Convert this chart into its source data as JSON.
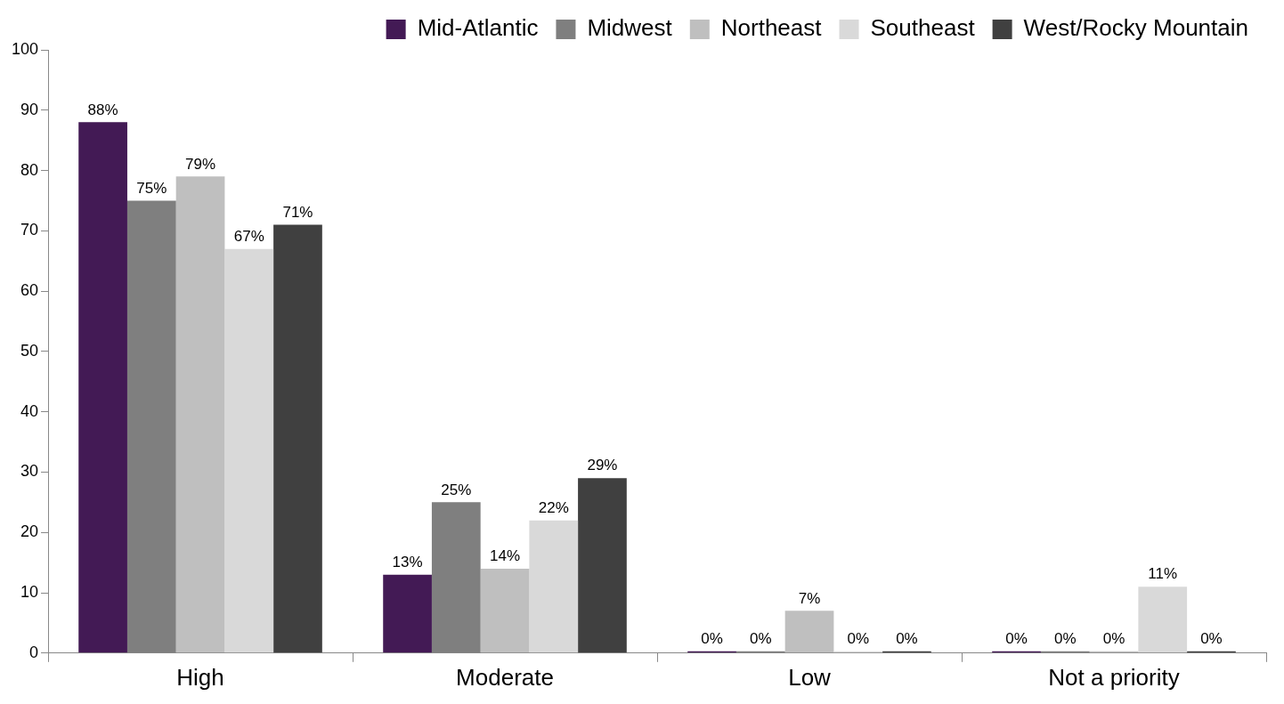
{
  "chart_data": {
    "type": "bar",
    "categories": [
      "High",
      "Moderate",
      "Low",
      "Not a priority"
    ],
    "series": [
      {
        "name": "Mid-Atlantic",
        "color": "#431a55",
        "values": [
          88,
          13,
          0,
          0
        ],
        "value_labels": [
          "88%",
          "13%",
          "0%",
          "0%"
        ]
      },
      {
        "name": "Midwest",
        "color": "#7f7f7f",
        "values": [
          75,
          25,
          0,
          0
        ],
        "value_labels": [
          "75%",
          "25%",
          "0%",
          "0%"
        ]
      },
      {
        "name": "Northeast",
        "color": "#bfbfbf",
        "values": [
          79,
          14,
          7,
          0
        ],
        "value_labels": [
          "79%",
          "14%",
          "7%",
          "0%"
        ]
      },
      {
        "name": "Southeast",
        "color": "#d9d9d9",
        "values": [
          67,
          22,
          0,
          11
        ],
        "value_labels": [
          "67%",
          "22%",
          "0%",
          "11%"
        ]
      },
      {
        "name": "West/Rocky Mountain",
        "color": "#404040",
        "values": [
          71,
          29,
          0,
          0
        ],
        "value_labels": [
          "71%",
          "29%",
          "0%",
          "0%"
        ]
      }
    ],
    "ylim": [
      0,
      100
    ],
    "yticks": [
      0,
      10,
      20,
      30,
      40,
      50,
      60,
      70,
      80,
      90,
      100
    ],
    "grid": false,
    "legend": "top"
  }
}
